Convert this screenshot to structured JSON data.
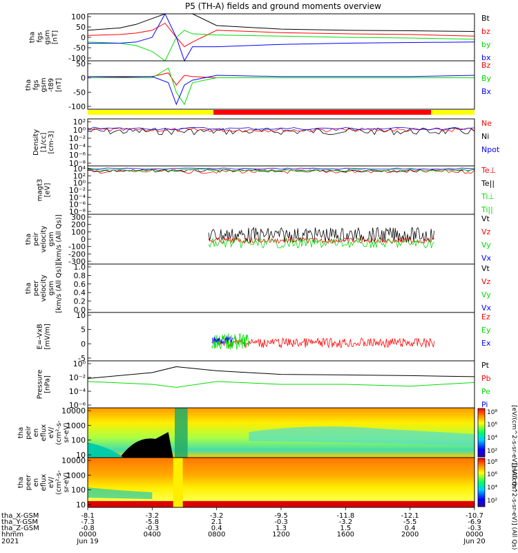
{
  "title": "P5 (TH-A) fields and ground moments overview",
  "colors": {
    "black": "#000000",
    "red": "#ff0000",
    "green": "#00dd00",
    "blue": "#0000ff",
    "yellow": "#ffff00"
  },
  "panels": [
    {
      "ylabel": [
        "tha",
        "fgs",
        "gsm",
        "[nT]"
      ],
      "ticks": [
        "100",
        "50",
        "0",
        "-50",
        "-100"
      ],
      "legend": [
        {
          "text": "Bt",
          "color": "#000000"
        },
        {
          "text": "bz",
          "color": "#ff0000"
        },
        {
          "text": "by",
          "color": "#00dd00"
        },
        {
          "text": "bx",
          "color": "#0000ff"
        }
      ]
    },
    {
      "ylabel": [
        "tha",
        "fgs",
        "gsm",
        "-t89",
        "[nT]"
      ],
      "ticks": [
        "50",
        "0",
        "-50",
        "-100"
      ],
      "legend": [
        {
          "text": "Bz",
          "color": "#ff0000"
        },
        {
          "text": "By",
          "color": "#00dd00"
        },
        {
          "text": "Bx",
          "color": "#0000ff"
        }
      ]
    },
    {
      "ylabel": [
        "Density",
        "[1/cc]",
        "[cm-3]"
      ],
      "ticks": [
        "10²",
        "10⁰",
        "10⁻²",
        "10⁻⁴",
        "10⁻⁶",
        "10⁻⁸"
      ],
      "legend": [
        {
          "text": "Ne",
          "color": "#ff0000"
        },
        {
          "text": "Ni",
          "color": "#000000"
        },
        {
          "text": "Npot",
          "color": "#0000ff"
        }
      ]
    },
    {
      "ylabel": [
        "magt3",
        "[eV]"
      ],
      "ticks": [
        "10⁴",
        "10²",
        "10⁰",
        "10⁻²",
        "10⁻⁴",
        "10⁻⁶",
        "10⁻⁸"
      ],
      "legend": [
        {
          "text": "Te⊥",
          "color": "#ff0000"
        },
        {
          "text": "Te||",
          "color": "#000000"
        },
        {
          "text": "Ti⊥",
          "color": "#00dd00"
        },
        {
          "text": "Ti||",
          "color": "#00dd00"
        }
      ]
    },
    {
      "ylabel": [
        "tha",
        "peir",
        "velocity",
        "gsm",
        "[km/s (All Qs)]"
      ],
      "ticks": [
        "300",
        "200",
        "100",
        "0",
        "-100",
        "-200",
        "-300"
      ],
      "legend": [
        {
          "text": "Vt",
          "color": "#000000"
        },
        {
          "text": "Vz",
          "color": "#ff0000"
        },
        {
          "text": "Vy",
          "color": "#00dd00"
        },
        {
          "text": "Vx",
          "color": "#0000ff"
        }
      ]
    },
    {
      "ylabel": [
        "tha",
        "peer",
        "velocity",
        "gsm",
        "[km/s (All Qs)]"
      ],
      "ticks": [
        "1.0",
        "0.8",
        "0.6",
        "0.4",
        "0.2",
        "0.0"
      ],
      "legend": [
        {
          "text": "Vt",
          "color": "#000000"
        },
        {
          "text": "Vz",
          "color": "#ff0000"
        },
        {
          "text": "Vy",
          "color": "#00dd00"
        },
        {
          "text": "Vx",
          "color": "#0000ff"
        }
      ]
    },
    {
      "ylabel": [
        "E=-VxB",
        "[mV/m]"
      ],
      "ticks": [
        "10",
        "5",
        "0",
        "-5"
      ],
      "legend": [
        {
          "text": "Ez",
          "color": "#ff0000"
        },
        {
          "text": "Ey",
          "color": "#00dd00"
        },
        {
          "text": "Ex",
          "color": "#0000ff"
        }
      ]
    },
    {
      "ylabel": [
        "Pressure",
        "[nPa]"
      ],
      "ticks": [
        "10⁰",
        "10⁻²",
        "10⁻⁴",
        "10⁻⁶"
      ],
      "legend": [
        {
          "text": "Pt",
          "color": "#000000"
        },
        {
          "text": "Pb",
          "color": "#ff0000"
        },
        {
          "text": "Pe",
          "color": "#00dd00"
        },
        {
          "text": "Pi",
          "color": "#0000ff"
        }
      ]
    },
    {
      "ylabel": [
        "tha",
        "peir",
        "en",
        "eflux",
        "eV/",
        "(cm²-s-",
        "sr-eV)"
      ],
      "ticks": [
        "10000",
        "1000",
        "100",
        "10"
      ]
    },
    {
      "ylabel": [
        "tha",
        "peer",
        "en",
        "eflux",
        "eV/",
        "(cm²-s-",
        "sr-eV)"
      ],
      "ticks": [
        "10000",
        "1000",
        "100",
        "10"
      ]
    }
  ],
  "colorbar1": {
    "ticks": [
      "10⁸",
      "10⁶",
      "10⁴",
      "10²"
    ],
    "label": "[eV/(cm^2-s-sr-eV)] (All Qs)"
  },
  "colorbar2": {
    "ticks": [
      "10⁸",
      "10⁶",
      "10⁴",
      "10²"
    ],
    "label": "[eV/(cm^2-s-sr-eV)] (All Qs)"
  },
  "xaxis": {
    "row_labels": [
      "tha_X-GSM",
      "tha_Y-GSM",
      "tha_Z-GSM",
      "hhmm",
      "2021"
    ],
    "columns": [
      {
        "x": "-8.1",
        "y": "-7.3",
        "z": "-0.8",
        "hhmm": "0000",
        "date": "Jun 19"
      },
      {
        "x": "-3.2",
        "y": "-5.8",
        "z": "-0.3",
        "hhmm": "0400",
        "date": ""
      },
      {
        "x": "-3.2",
        "y": "2.1",
        "z": "0.4",
        "hhmm": "0800",
        "date": ""
      },
      {
        "x": "-9.5",
        "y": "-0.3",
        "z": "1.3",
        "hhmm": "1200",
        "date": ""
      },
      {
        "x": "-11.8",
        "y": "-3.2",
        "z": "1.5",
        "hhmm": "1600",
        "date": ""
      },
      {
        "x": "-12.1",
        "y": "-5.5",
        "z": "0.4",
        "hhmm": "2000",
        "date": ""
      },
      {
        "x": "-10.7",
        "y": "-6.9",
        "z": "-0.3",
        "hhmm": "0000",
        "date": "Jun 20"
      }
    ]
  },
  "chart_data": {
    "type": "line",
    "title": "P5 (TH-A) fields and ground moments overview",
    "x_hours": [
      0,
      4,
      8,
      12,
      16,
      20,
      24
    ],
    "x_tick_labels": [
      "0000",
      "0400",
      "0800",
      "1200",
      "1600",
      "2000",
      "0000"
    ],
    "series": [
      {
        "panel": 0,
        "name": "Bt",
        "hours": [
          0,
          2,
          3,
          4,
          4.8,
          5.5,
          6,
          6.5,
          8,
          12,
          16,
          20,
          24
        ],
        "values": [
          30,
          40,
          55,
          80,
          110,
          110,
          110,
          100,
          50,
          35,
          30,
          28,
          25
        ]
      },
      {
        "panel": 0,
        "name": "bz",
        "hours": [
          0,
          2,
          3,
          4,
          4.8,
          5.5,
          6,
          6.5,
          8,
          12,
          16,
          20,
          24
        ],
        "values": [
          8,
          12,
          18,
          30,
          60,
          0,
          -40,
          -20,
          30,
          20,
          15,
          12,
          5
        ]
      },
      {
        "panel": 0,
        "name": "by",
        "hours": [
          0,
          2,
          3,
          4,
          4.8,
          5.5,
          6,
          6.5,
          8,
          12,
          16,
          20,
          24
        ],
        "values": [
          -20,
          -25,
          -35,
          -60,
          -100,
          0,
          30,
          15,
          10,
          5,
          0,
          -3,
          -8
        ]
      },
      {
        "panel": 0,
        "name": "bx",
        "hours": [
          0,
          2,
          3,
          4,
          4.8,
          5.5,
          6,
          6.5,
          8,
          12,
          16,
          20,
          24
        ],
        "values": [
          -25,
          -25,
          -20,
          0,
          100,
          0,
          -100,
          -40,
          -40,
          -30,
          -25,
          -22,
          -20
        ]
      },
      {
        "panel": 1,
        "name": "Bz",
        "hours": [
          0,
          4,
          5,
          5.5,
          6,
          6.5,
          8,
          12,
          16,
          20,
          24
        ],
        "values": [
          0,
          5,
          20,
          -30,
          10,
          5,
          0,
          0,
          0,
          0,
          0
        ]
      },
      {
        "panel": 1,
        "name": "By",
        "hours": [
          0,
          4,
          5,
          5.5,
          6,
          6.5,
          8,
          12,
          16,
          20,
          24
        ],
        "values": [
          0,
          0,
          40,
          -60,
          -110,
          -20,
          0,
          0,
          0,
          0,
          0
        ]
      },
      {
        "panel": 1,
        "name": "Bx",
        "hours": [
          0,
          4,
          5,
          5.5,
          6,
          6.5,
          8,
          12,
          16,
          20,
          24
        ],
        "values": [
          5,
          5,
          -20,
          -110,
          -30,
          -10,
          10,
          5,
          5,
          5,
          10
        ]
      },
      {
        "panel": 7,
        "name": "Pt",
        "hours": [
          0,
          4,
          5.5,
          8,
          12,
          16,
          20,
          24
        ],
        "values": [
          0.01,
          0.1,
          1,
          0.2,
          0.05,
          0.04,
          0.03,
          0.02
        ]
      },
      {
        "panel": 7,
        "name": "Pe",
        "hours": [
          0,
          4,
          5.5,
          8,
          12,
          16,
          20,
          24
        ],
        "values": [
          0.003,
          0.001,
          0.0003,
          0.003,
          0.001,
          0.001,
          0.0005,
          0.002
        ]
      }
    ]
  }
}
